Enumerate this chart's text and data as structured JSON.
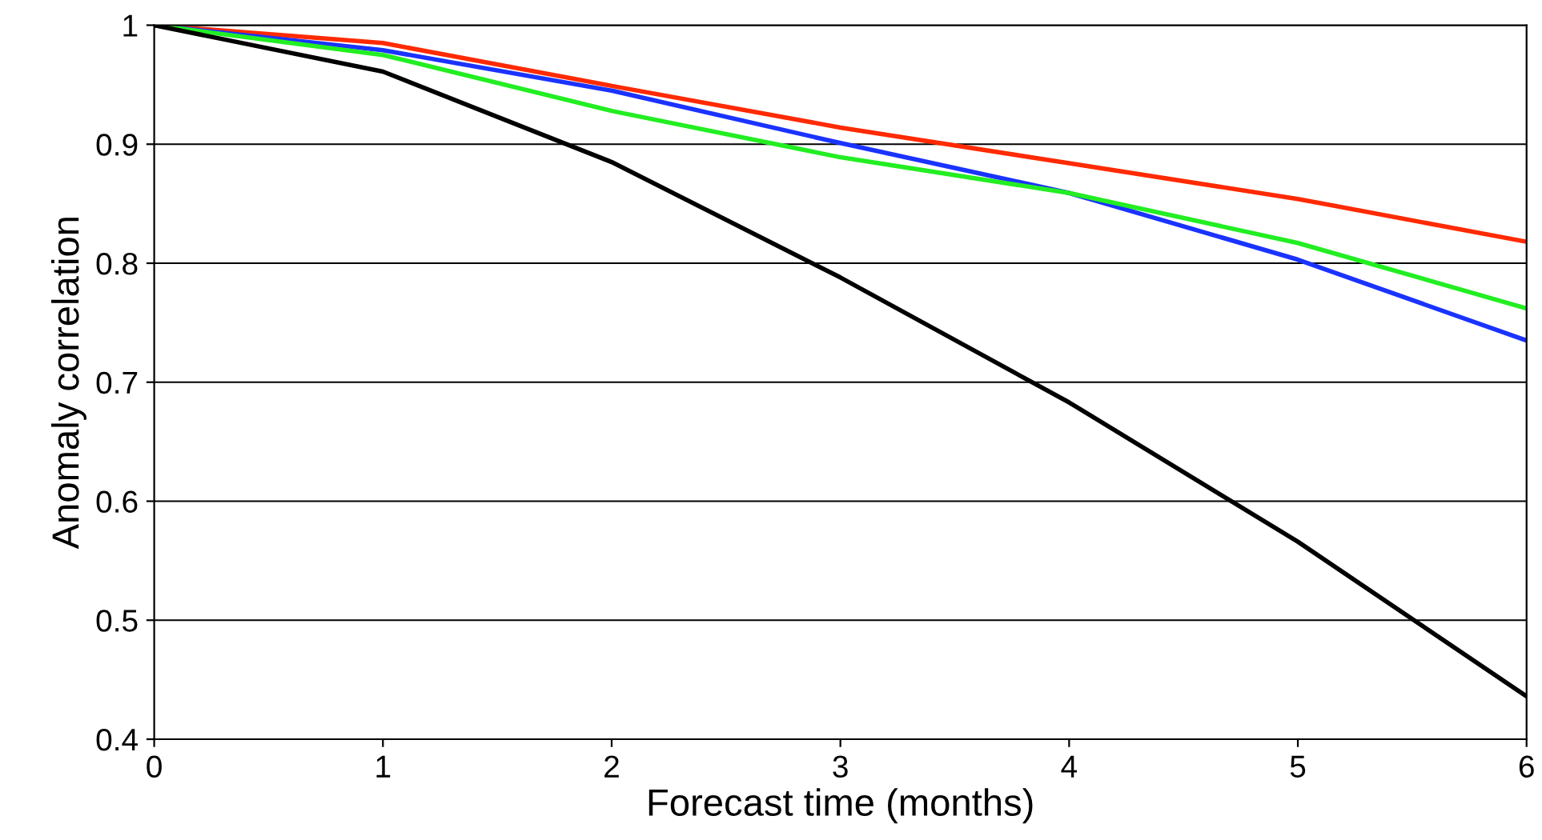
{
  "chart_data": {
    "type": "line",
    "xlabel": "Forecast time (months)",
    "ylabel": "Anomaly correlation",
    "x": [
      0,
      1,
      2,
      3,
      4,
      5,
      6
    ],
    "series": [
      {
        "color": "#ff2a00",
        "values": [
          1.0,
          0.985,
          0.949,
          0.914,
          0.884,
          0.854,
          0.818
        ]
      },
      {
        "color": "#1a33ff",
        "values": [
          1.0,
          0.979,
          0.945,
          0.901,
          0.859,
          0.803,
          0.735
        ]
      },
      {
        "color": "#22ee22",
        "values": [
          1.0,
          0.975,
          0.928,
          0.889,
          0.859,
          0.817,
          0.762
        ]
      },
      {
        "color": "#000000",
        "values": [
          1.0,
          0.961,
          0.885,
          0.788,
          0.683,
          0.566,
          0.436
        ]
      }
    ],
    "xlim": [
      0,
      6
    ],
    "xticks": [
      0,
      1,
      2,
      3,
      4,
      5,
      6
    ],
    "ylim": [
      0.4,
      1
    ],
    "yticks": [
      0.4,
      0.5,
      0.6,
      0.7,
      0.8,
      0.9,
      1
    ],
    "grid": "y",
    "marker": "none",
    "line_style": "solid"
  }
}
